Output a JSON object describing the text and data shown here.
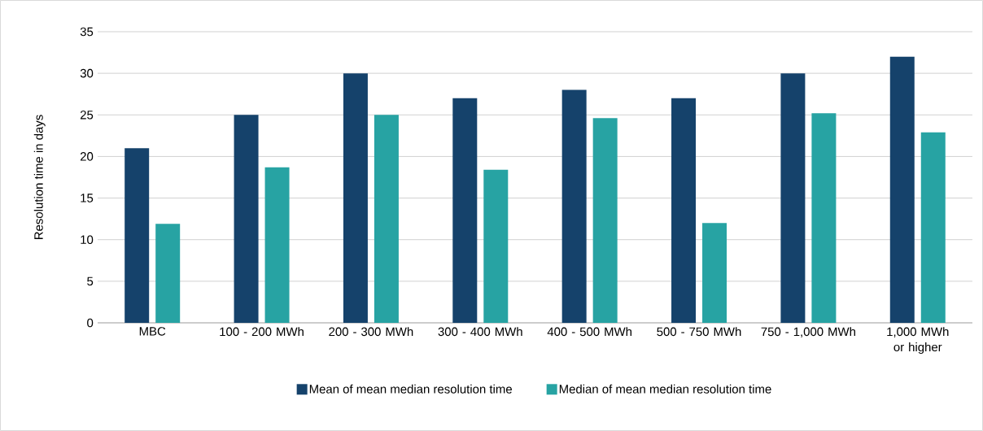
{
  "chart_data": {
    "type": "bar",
    "ylabel": "Resolution time in days",
    "categories": [
      "MBC",
      "100 - 200 MWh",
      "200 - 300 MWh",
      "300 - 400 MWh",
      "400 - 500 MWh",
      "500 - 750 MWh",
      "750 - 1,000 MWh",
      "1,000 MWh or higher"
    ],
    "series": [
      {
        "name": "Mean of mean median resolution time",
        "color": "#15426b",
        "values": [
          21,
          25,
          30,
          27,
          28,
          27,
          30,
          32
        ]
      },
      {
        "name": "Median of mean median resolution time",
        "color": "#27a3a3",
        "values": [
          11.9,
          18.7,
          25,
          18.4,
          24.6,
          12,
          25.2,
          22.9
        ]
      }
    ],
    "ylim": [
      0,
      35
    ],
    "yticks": [
      0,
      5,
      10,
      15,
      20,
      25,
      30,
      35
    ],
    "grid": "y",
    "legend": "bottom"
  }
}
